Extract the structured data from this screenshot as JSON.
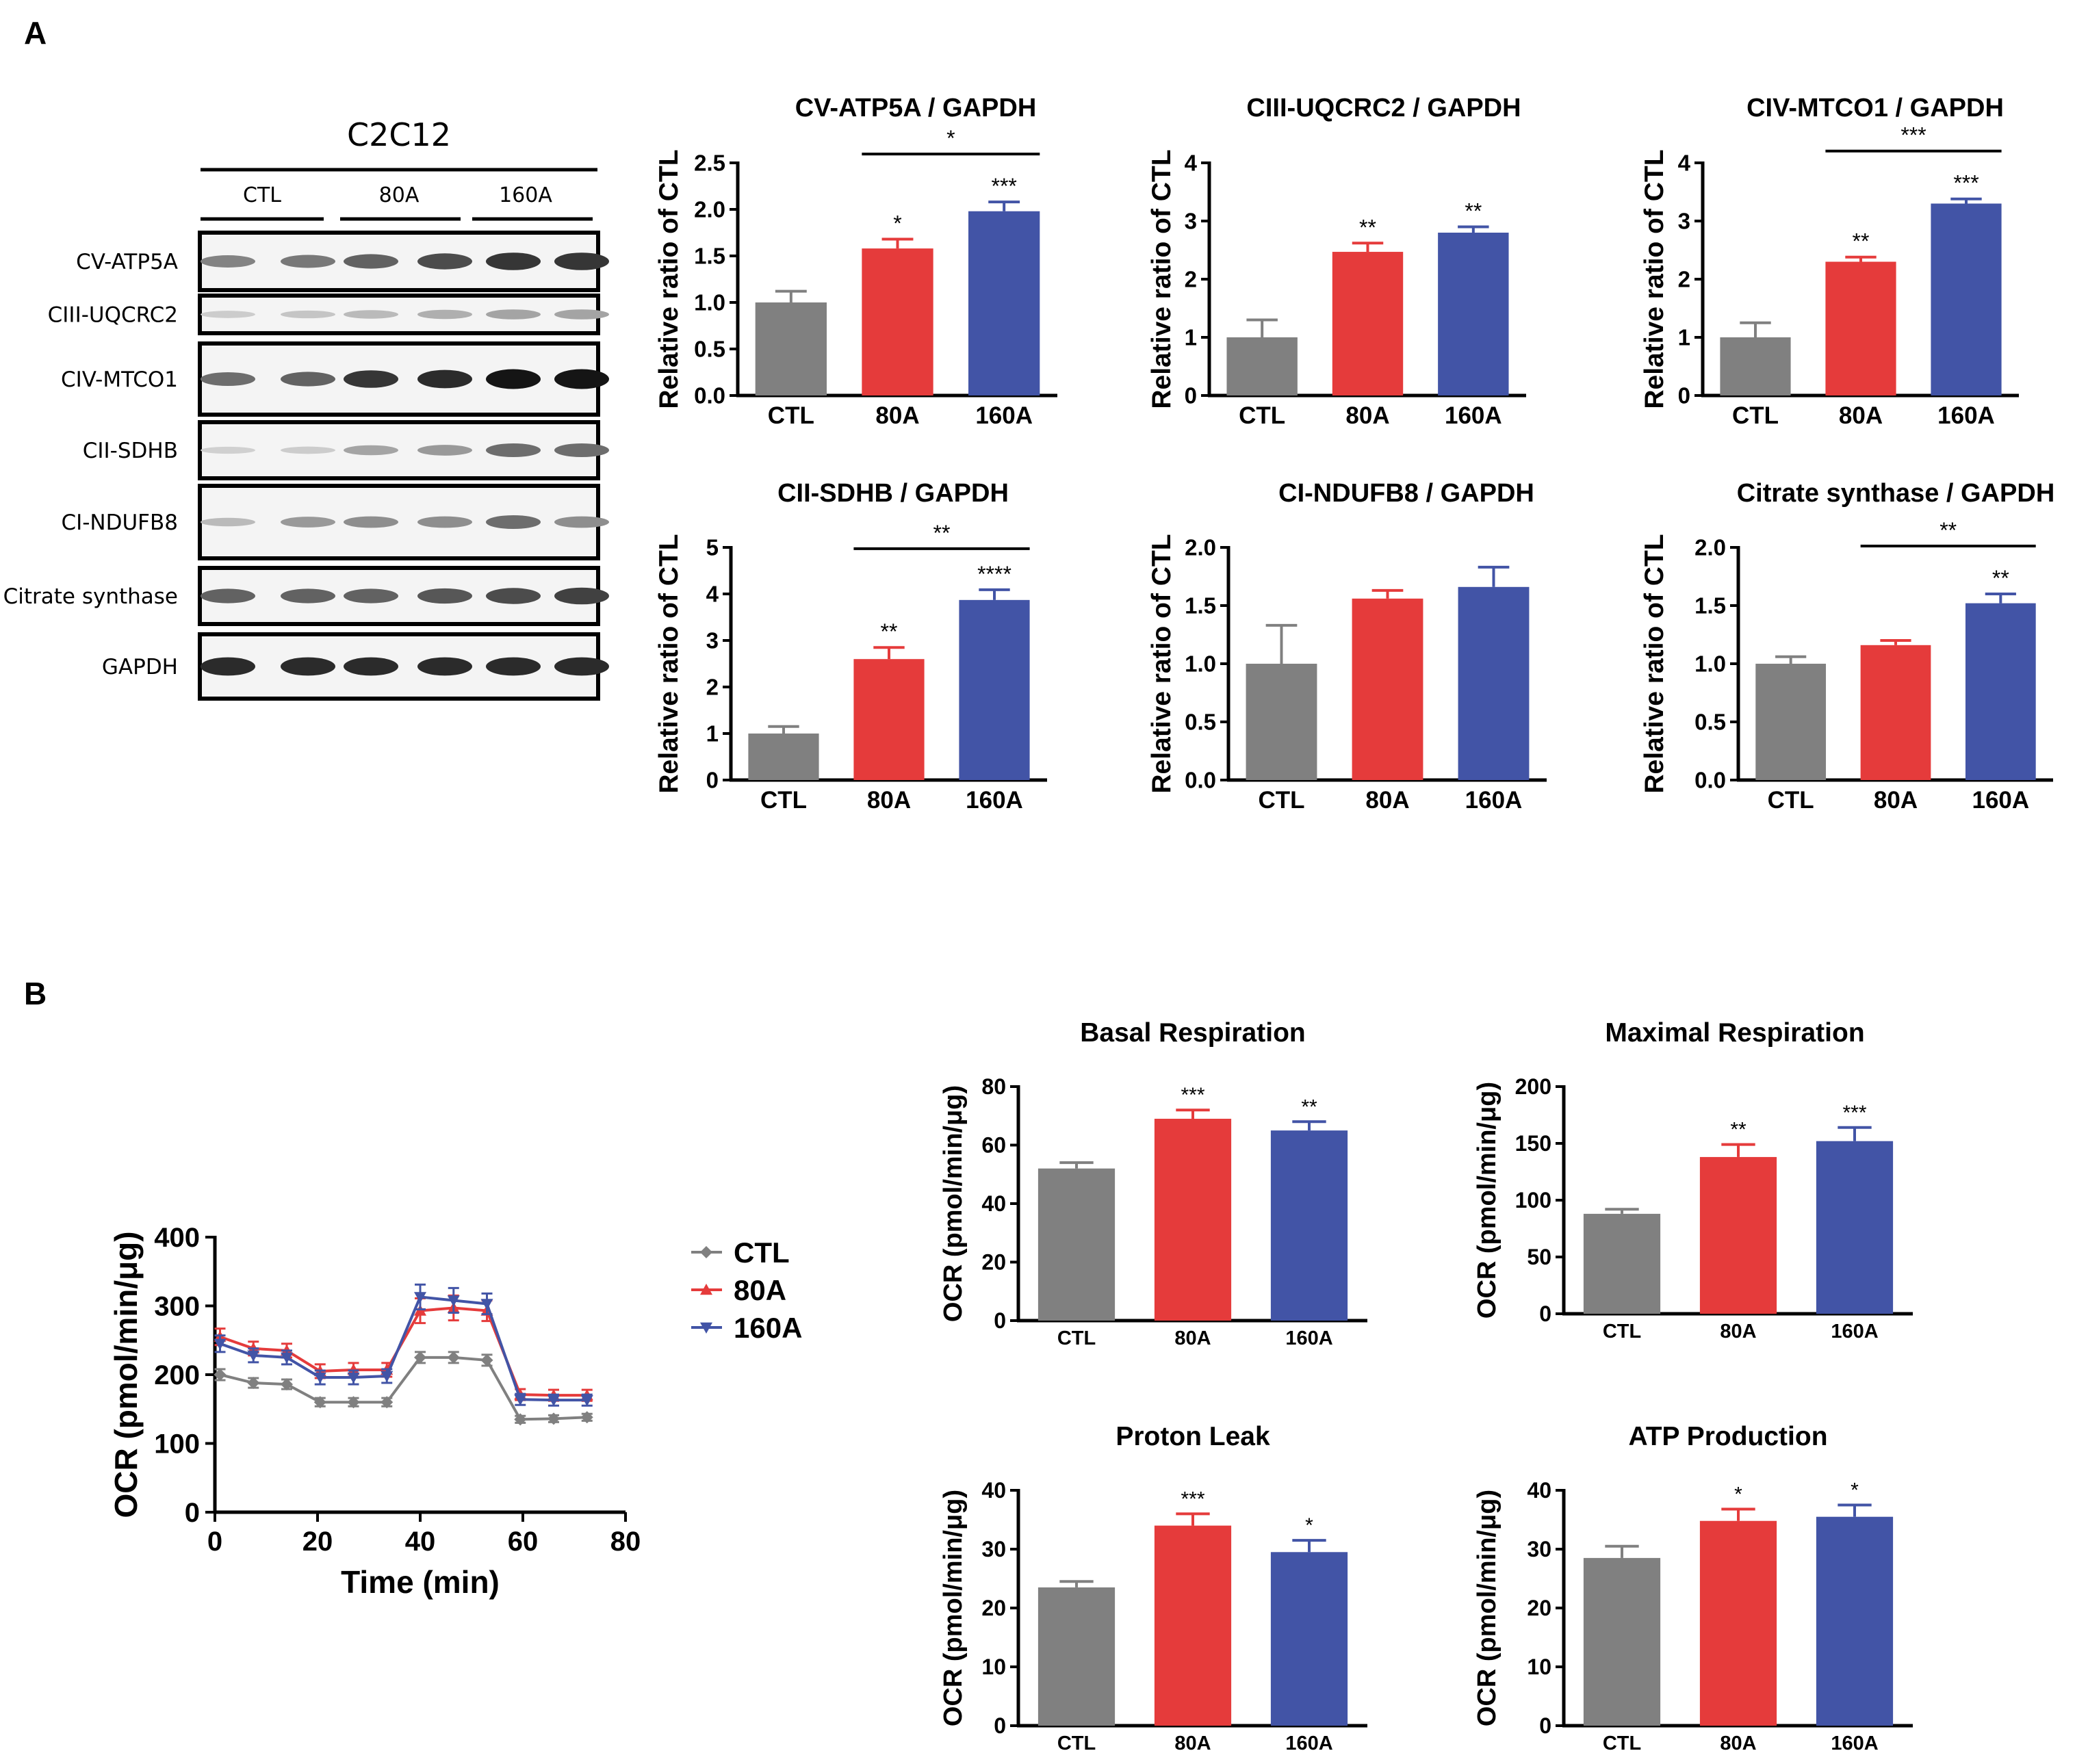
{
  "panel_labels": [
    "A",
    "B"
  ],
  "colors": {
    "CTL": "#808080",
    "80A": "#e53b3b",
    "160A": "#4254a6",
    "axis": "#000000"
  },
  "blot": {
    "title": "C2C12",
    "groups": [
      "CTL",
      "80A",
      "160A"
    ],
    "rows": [
      {
        "label": "CV-ATP5A",
        "intensity": [
          0.45,
          0.5,
          0.6,
          0.7,
          0.8,
          0.8
        ]
      },
      {
        "label": "CIII-UQCRC2",
        "intensity": [
          0.12,
          0.15,
          0.2,
          0.25,
          0.3,
          0.3
        ]
      },
      {
        "label": "CIV-MTCO1",
        "intensity": [
          0.55,
          0.6,
          0.8,
          0.85,
          0.95,
          0.95
        ]
      },
      {
        "label": "CII-SDHB",
        "intensity": [
          0.1,
          0.12,
          0.3,
          0.35,
          0.55,
          0.55
        ]
      },
      {
        "label": "CI-NDUFB8",
        "intensity": [
          0.2,
          0.35,
          0.4,
          0.4,
          0.55,
          0.4
        ]
      },
      {
        "label": "Citrate synthase",
        "intensity": [
          0.6,
          0.6,
          0.6,
          0.65,
          0.7,
          0.75
        ]
      },
      {
        "label": "GAPDH",
        "intensity": [
          0.85,
          0.85,
          0.85,
          0.85,
          0.85,
          0.85
        ]
      }
    ]
  },
  "chart_data": [
    {
      "id": "cv",
      "type": "bar",
      "title": "CV-ATP5A / GAPDH",
      "ylabel": "Relative ratio of CTL",
      "categories": [
        "CTL",
        "80A",
        "160A"
      ],
      "values": [
        1.0,
        1.58,
        1.98
      ],
      "errors": [
        0.12,
        0.1,
        0.1
      ],
      "ylim": [
        0,
        2.5
      ],
      "yticks": [
        "0.0",
        "0.5",
        "1.0",
        "1.5",
        "2.0",
        "2.5"
      ],
      "stars": [
        "",
        "*",
        "***"
      ],
      "bracket": {
        "from": 1,
        "to": 2,
        "label": "*"
      }
    },
    {
      "id": "ciii",
      "type": "bar",
      "title": "CIII-UQCRC2 / GAPDH",
      "ylabel": "Relative ratio of CTL",
      "categories": [
        "CTL",
        "80A",
        "160A"
      ],
      "values": [
        1.0,
        2.47,
        2.8
      ],
      "errors": [
        0.3,
        0.15,
        0.1
      ],
      "ylim": [
        0,
        4
      ],
      "yticks": [
        "0",
        "1",
        "2",
        "3",
        "4"
      ],
      "stars": [
        "",
        "**",
        "**"
      ],
      "bracket": null
    },
    {
      "id": "civ",
      "type": "bar",
      "title": "CIV-MTCO1 / GAPDH",
      "ylabel": "Relative ratio of CTL",
      "categories": [
        "CTL",
        "80A",
        "160A"
      ],
      "values": [
        1.0,
        2.3,
        3.3
      ],
      "errors": [
        0.25,
        0.08,
        0.08
      ],
      "ylim": [
        0,
        4
      ],
      "yticks": [
        "0",
        "1",
        "2",
        "3",
        "4"
      ],
      "stars": [
        "",
        "**",
        "***"
      ],
      "bracket": {
        "from": 1,
        "to": 2,
        "label": "***"
      }
    },
    {
      "id": "cii",
      "type": "bar",
      "title": "CII-SDHB / GAPDH",
      "ylabel": "Relative ratio of CTL",
      "categories": [
        "CTL",
        "80A",
        "160A"
      ],
      "values": [
        1.0,
        2.6,
        3.87
      ],
      "errors": [
        0.15,
        0.25,
        0.22
      ],
      "ylim": [
        0,
        5
      ],
      "yticks": [
        "0",
        "1",
        "2",
        "3",
        "4",
        "5"
      ],
      "stars": [
        "",
        "**",
        "****"
      ],
      "bracket": {
        "from": 1,
        "to": 2,
        "label": "**"
      }
    },
    {
      "id": "ci",
      "type": "bar",
      "title": "CI-NDUFB8 / GAPDH",
      "ylabel": "Relative ratio of CTL",
      "categories": [
        "CTL",
        "80A",
        "160A"
      ],
      "values": [
        1.0,
        1.56,
        1.66
      ],
      "errors": [
        0.33,
        0.07,
        0.17
      ],
      "ylim": [
        0,
        2.0
      ],
      "yticks": [
        "0.0",
        "0.5",
        "1.0",
        "1.5",
        "2.0"
      ],
      "stars": [
        "",
        "",
        ""
      ],
      "bracket": null
    },
    {
      "id": "cs",
      "type": "bar",
      "title": "Citrate synthase / GAPDH",
      "ylabel": "Relative ratio of CTL",
      "categories": [
        "CTL",
        "80A",
        "160A"
      ],
      "values": [
        1.0,
        1.16,
        1.52
      ],
      "errors": [
        0.06,
        0.04,
        0.08
      ],
      "ylim": [
        0,
        2.0
      ],
      "yticks": [
        "0.0",
        "0.5",
        "1.0",
        "1.5",
        "2.0"
      ],
      "stars": [
        "",
        "",
        "**"
      ],
      "bracket": {
        "from": 1,
        "to": 2,
        "label": "**"
      }
    },
    {
      "id": "ocr",
      "type": "line",
      "title": "",
      "xlabel": "Time (min)",
      "ylabel": "OCR (pmol/min/μg)",
      "xlim": [
        0,
        80
      ],
      "ylim": [
        0,
        400
      ],
      "xticks": [
        "0",
        "20",
        "40",
        "60",
        "80"
      ],
      "yticks": [
        "0",
        "100",
        "200",
        "300",
        "400"
      ],
      "x": [
        1,
        7.5,
        14,
        20.5,
        27,
        33.5,
        40,
        46.5,
        53,
        59.5,
        66,
        72.5
      ],
      "series": [
        {
          "name": "CTL",
          "marker": "diamond",
          "values": [
            200,
            188,
            186,
            160,
            160,
            160,
            225,
            225,
            221,
            135,
            136,
            138
          ],
          "errors": [
            8,
            7,
            7,
            6,
            6,
            6,
            8,
            8,
            8,
            5,
            5,
            5
          ]
        },
        {
          "name": "80A",
          "marker": "triangle-up",
          "values": [
            255,
            238,
            235,
            205,
            207,
            207,
            293,
            297,
            293,
            171,
            170,
            170
          ],
          "errors": [
            12,
            10,
            10,
            10,
            10,
            10,
            18,
            18,
            15,
            8,
            8,
            8
          ]
        },
        {
          "name": "160A",
          "marker": "triangle-down",
          "values": [
            245,
            228,
            225,
            196,
            196,
            198,
            313,
            308,
            303,
            164,
            163,
            163
          ],
          "errors": [
            12,
            10,
            10,
            10,
            10,
            10,
            18,
            18,
            15,
            8,
            8,
            8
          ]
        }
      ]
    },
    {
      "id": "basal",
      "type": "bar",
      "title": "Basal Respiration",
      "ylabel": "OCR (pmol/min/μg)",
      "categories": [
        "CTL",
        "80A",
        "160A"
      ],
      "values": [
        52,
        69,
        65
      ],
      "errors": [
        2,
        3,
        3
      ],
      "ylim": [
        0,
        80
      ],
      "yticks": [
        "0",
        "20",
        "40",
        "60",
        "80"
      ],
      "stars": [
        "",
        "***",
        "**"
      ],
      "bracket": null
    },
    {
      "id": "maximal",
      "type": "bar",
      "title": "Maximal Respiration",
      "ylabel": "OCR (pmol/min/μg)",
      "categories": [
        "CTL",
        "80A",
        "160A"
      ],
      "values": [
        88,
        138,
        152
      ],
      "errors": [
        4,
        11,
        12
      ],
      "ylim": [
        0,
        200
      ],
      "yticks": [
        "0",
        "50",
        "100",
        "150",
        "200"
      ],
      "stars": [
        "",
        "**",
        "***"
      ],
      "bracket": null
    },
    {
      "id": "proton",
      "type": "bar",
      "title": "Proton Leak",
      "ylabel": "OCR (pmol/min/μg)",
      "categories": [
        "CTL",
        "80A",
        "160A"
      ],
      "values": [
        23.5,
        34,
        29.5
      ],
      "errors": [
        1,
        2,
        2
      ],
      "ylim": [
        0,
        40
      ],
      "yticks": [
        "0",
        "10",
        "20",
        "30",
        "40"
      ],
      "stars": [
        "",
        "***",
        "*"
      ],
      "bracket": null
    },
    {
      "id": "atp",
      "type": "bar",
      "title": "ATP Production",
      "ylabel": "OCR (pmol/min/μg)",
      "categories": [
        "CTL",
        "80A",
        "160A"
      ],
      "values": [
        28.5,
        34.8,
        35.5
      ],
      "errors": [
        2,
        2,
        2
      ],
      "ylim": [
        0,
        40
      ],
      "yticks": [
        "0",
        "10",
        "20",
        "30",
        "40"
      ],
      "stars": [
        "",
        "*",
        "*"
      ],
      "bracket": null
    }
  ]
}
